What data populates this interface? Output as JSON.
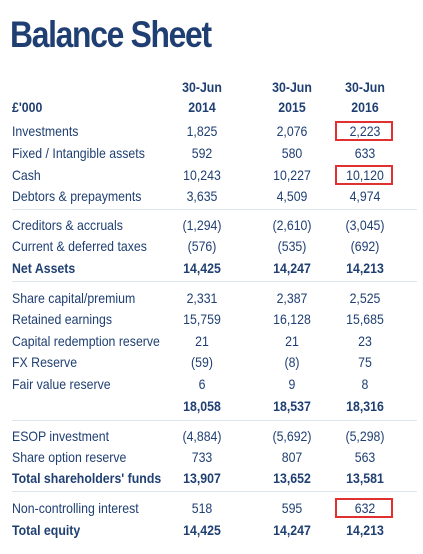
{
  "title": "Balance Sheet",
  "unit": "£'000",
  "columns": [
    {
      "month": "30-Jun",
      "year": "2014"
    },
    {
      "month": "30-Jun",
      "year": "2015"
    },
    {
      "month": "30-Jun",
      "year": "2016"
    }
  ],
  "rows": [
    {
      "label": "Investments",
      "values": [
        "1,825",
        "2,076",
        "2,223"
      ],
      "highlight": true
    },
    {
      "label": "Fixed / Intangible assets",
      "values": [
        "592",
        "580",
        "633"
      ]
    },
    {
      "label": "Cash",
      "values": [
        "10,243",
        "10,227",
        "10,120"
      ],
      "highlight": true
    },
    {
      "label": "Debtors & prepayments",
      "values": [
        "3,635",
        "4,509",
        "4,974"
      ]
    },
    {
      "label": "Creditors & accruals",
      "values": [
        "(1,294)",
        "(2,610)",
        "(3,045)"
      ]
    },
    {
      "label": "Current & deferred taxes",
      "values": [
        "(576)",
        "(535)",
        "(692)"
      ]
    },
    {
      "label": "Net Assets",
      "values": [
        "14,425",
        "14,247",
        "14,213"
      ],
      "bold": true
    },
    {
      "label": "Share capital/premium",
      "values": [
        "2,331",
        "2,387",
        "2,525"
      ]
    },
    {
      "label": "Retained earnings",
      "values": [
        "15,759",
        "16,128",
        "15,685"
      ]
    },
    {
      "label": "Capital redemption reserve",
      "values": [
        "21",
        "21",
        "23"
      ]
    },
    {
      "label": "FX Reserve",
      "values": [
        "(59)",
        "(8)",
        "75"
      ]
    },
    {
      "label": "Fair value reserve",
      "values": [
        "6",
        "9",
        "8"
      ]
    },
    {
      "label": "",
      "values": [
        "18,058",
        "18,537",
        "18,316"
      ],
      "bold": true
    },
    {
      "label": "ESOP investment",
      "values": [
        "(4,884)",
        "(5,692)",
        "(5,298)"
      ]
    },
    {
      "label": "Share option reserve",
      "values": [
        "733",
        "807",
        "563"
      ]
    },
    {
      "label": "Total shareholders' funds",
      "values": [
        "13,907",
        "13,652",
        "13,581"
      ],
      "bold": true
    },
    {
      "label": "Non-controlling interest",
      "values": [
        "518",
        "595",
        "632"
      ],
      "highlight": true
    },
    {
      "label": "Total equity",
      "values": [
        "14,425",
        "14,247",
        "14,213"
      ],
      "bold": true
    }
  ],
  "colors": {
    "text": "#1f3f72",
    "highlight_border": "#e03030"
  }
}
